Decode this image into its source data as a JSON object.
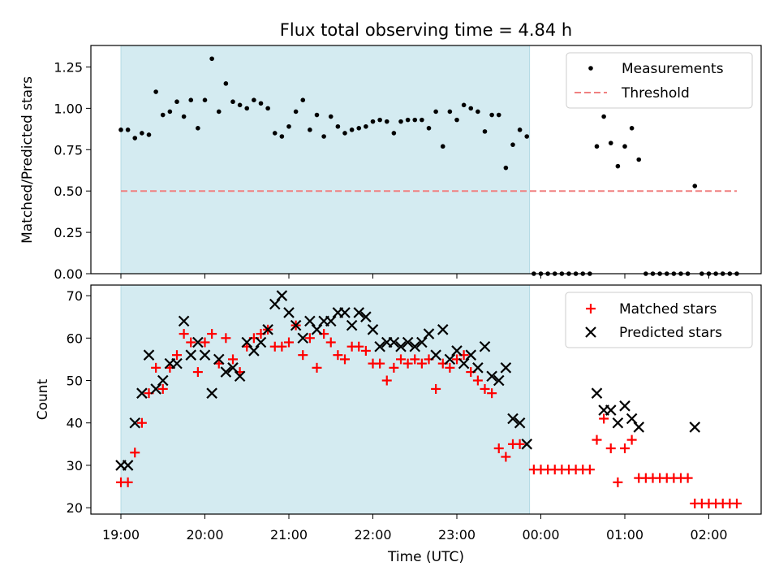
{
  "figure": {
    "title": "Flux total observing time = 4.84 h",
    "xlabel": "Time (UTC)",
    "x_ticks": [
      "19:00",
      "20:00",
      "21:00",
      "22:00",
      "23:00",
      "00:00",
      "01:00",
      "02:00"
    ]
  },
  "chart_data": [
    {
      "type": "scatter",
      "ylabel": "Matched/Predicted stars",
      "ylim": [
        0,
        1.38
      ],
      "y_ticks": [
        "0.00",
        "0.25",
        "0.50",
        "0.75",
        "1.00",
        "1.25"
      ],
      "shaded_span": [
        "19:00",
        "23:52"
      ],
      "shade_color": "#d4ebf1",
      "threshold": 0.5,
      "legend": {
        "placement": "top-right",
        "entries": [
          "Measurements",
          "Threshold"
        ]
      },
      "series": [
        {
          "name": "Measurements",
          "color": "#000000",
          "marker": "dot",
          "points": [
            [
              "19:00",
              0.87
            ],
            [
              "19:05",
              0.87
            ],
            [
              "19:10",
              0.82
            ],
            [
              "19:15",
              0.85
            ],
            [
              "19:20",
              0.84
            ],
            [
              "19:25",
              1.1
            ],
            [
              "19:30",
              0.96
            ],
            [
              "19:35",
              0.98
            ],
            [
              "19:40",
              1.04
            ],
            [
              "19:45",
              0.95
            ],
            [
              "19:50",
              1.05
            ],
            [
              "19:55",
              0.88
            ],
            [
              "20:00",
              1.05
            ],
            [
              "20:05",
              1.3
            ],
            [
              "20:10",
              0.98
            ],
            [
              "20:15",
              1.15
            ],
            [
              "20:20",
              1.04
            ],
            [
              "20:25",
              1.02
            ],
            [
              "20:30",
              1.0
            ],
            [
              "20:35",
              1.05
            ],
            [
              "20:40",
              1.03
            ],
            [
              "20:45",
              1.0
            ],
            [
              "20:50",
              0.85
            ],
            [
              "20:55",
              0.83
            ],
            [
              "21:00",
              0.89
            ],
            [
              "21:05",
              0.98
            ],
            [
              "21:10",
              1.05
            ],
            [
              "21:15",
              0.87
            ],
            [
              "21:20",
              0.96
            ],
            [
              "21:25",
              0.83
            ],
            [
              "21:30",
              0.95
            ],
            [
              "21:35",
              0.89
            ],
            [
              "21:40",
              0.85
            ],
            [
              "21:45",
              0.87
            ],
            [
              "21:50",
              0.88
            ],
            [
              "21:55",
              0.89
            ],
            [
              "22:00",
              0.92
            ],
            [
              "22:05",
              0.93
            ],
            [
              "22:10",
              0.92
            ],
            [
              "22:15",
              0.85
            ],
            [
              "22:20",
              0.92
            ],
            [
              "22:25",
              0.93
            ],
            [
              "22:30",
              0.93
            ],
            [
              "22:35",
              0.93
            ],
            [
              "22:40",
              0.88
            ],
            [
              "22:45",
              0.98
            ],
            [
              "22:50",
              0.77
            ],
            [
              "22:55",
              0.98
            ],
            [
              "23:00",
              0.93
            ],
            [
              "23:05",
              1.02
            ],
            [
              "23:10",
              1.0
            ],
            [
              "23:15",
              0.98
            ],
            [
              "23:20",
              0.86
            ],
            [
              "23:25",
              0.96
            ],
            [
              "23:30",
              0.96
            ],
            [
              "23:35",
              0.64
            ],
            [
              "23:40",
              0.78
            ],
            [
              "23:45",
              0.87
            ],
            [
              "23:50",
              0.83
            ],
            [
              "23:55",
              0.0
            ],
            [
              "00:00",
              0.0
            ],
            [
              "00:05",
              0.0
            ],
            [
              "00:10",
              0.0
            ],
            [
              "00:15",
              0.0
            ],
            [
              "00:20",
              0.0
            ],
            [
              "00:25",
              0.0
            ],
            [
              "00:30",
              0.0
            ],
            [
              "00:35",
              0.0
            ],
            [
              "00:40",
              0.77
            ],
            [
              "00:45",
              0.95
            ],
            [
              "00:50",
              0.79
            ],
            [
              "00:55",
              0.65
            ],
            [
              "01:00",
              0.77
            ],
            [
              "01:05",
              0.88
            ],
            [
              "01:10",
              0.69
            ],
            [
              "01:15",
              0.0
            ],
            [
              "01:20",
              0.0
            ],
            [
              "01:25",
              0.0
            ],
            [
              "01:30",
              0.0
            ],
            [
              "01:35",
              0.0
            ],
            [
              "01:40",
              0.0
            ],
            [
              "01:45",
              0.0
            ],
            [
              "01:50",
              0.53
            ],
            [
              "01:55",
              0.0
            ],
            [
              "02:00",
              0.0
            ],
            [
              "02:05",
              0.0
            ],
            [
              "02:10",
              0.0
            ],
            [
              "02:15",
              0.0
            ],
            [
              "02:20",
              0.0
            ]
          ]
        },
        {
          "name": "Threshold",
          "color": "#f08080",
          "style": "dashed",
          "points": [
            [
              "19:00",
              0.5
            ],
            [
              "02:20",
              0.5
            ]
          ]
        }
      ]
    },
    {
      "type": "scatter",
      "ylabel": "Count",
      "ylim": [
        18.5,
        72.5
      ],
      "y_ticks": [
        "20",
        "30",
        "40",
        "50",
        "60",
        "70"
      ],
      "shaded_span": [
        "19:00",
        "23:52"
      ],
      "shade_color": "#d4ebf1",
      "legend": {
        "placement": "top-right",
        "entries": [
          "Matched stars",
          "Predicted stars"
        ]
      },
      "series": [
        {
          "name": "Matched stars",
          "color": "#ff0000",
          "marker": "plus",
          "points": [
            [
              "19:00",
              26
            ],
            [
              "19:05",
              26
            ],
            [
              "19:10",
              33
            ],
            [
              "19:15",
              40
            ],
            [
              "19:20",
              47
            ],
            [
              "19:25",
              53
            ],
            [
              "19:30",
              48
            ],
            [
              "19:35",
              53
            ],
            [
              "19:40",
              56
            ],
            [
              "19:45",
              61
            ],
            [
              "19:50",
              59
            ],
            [
              "19:55",
              52
            ],
            [
              "20:00",
              59
            ],
            [
              "20:05",
              61
            ],
            [
              "20:10",
              54
            ],
            [
              "20:15",
              60
            ],
            [
              "20:20",
              55
            ],
            [
              "20:25",
              52
            ],
            [
              "20:30",
              58
            ],
            [
              "20:35",
              60
            ],
            [
              "20:40",
              61
            ],
            [
              "20:45",
              62
            ],
            [
              "20:50",
              58
            ],
            [
              "20:55",
              58
            ],
            [
              "21:00",
              59
            ],
            [
              "21:05",
              63
            ],
            [
              "21:10",
              56
            ],
            [
              "21:15",
              60
            ],
            [
              "21:20",
              53
            ],
            [
              "21:25",
              61
            ],
            [
              "21:30",
              59
            ],
            [
              "21:35",
              56
            ],
            [
              "21:40",
              55
            ],
            [
              "21:45",
              58
            ],
            [
              "21:50",
              58
            ],
            [
              "21:55",
              57
            ],
            [
              "22:00",
              54
            ],
            [
              "22:05",
              54
            ],
            [
              "22:10",
              50
            ],
            [
              "22:15",
              53
            ],
            [
              "22:20",
              55
            ],
            [
              "22:25",
              54
            ],
            [
              "22:30",
              55
            ],
            [
              "22:35",
              54
            ],
            [
              "22:40",
              55
            ],
            [
              "22:45",
              48
            ],
            [
              "22:50",
              54
            ],
            [
              "22:55",
              53
            ],
            [
              "23:00",
              55
            ],
            [
              "23:05",
              56
            ],
            [
              "23:10",
              52
            ],
            [
              "23:15",
              50
            ],
            [
              "23:20",
              48
            ],
            [
              "23:25",
              47
            ],
            [
              "23:30",
              34
            ],
            [
              "23:35",
              32
            ],
            [
              "23:40",
              35
            ],
            [
              "23:45",
              35
            ],
            [
              "23:55",
              29
            ],
            [
              "00:00",
              29
            ],
            [
              "00:05",
              29
            ],
            [
              "00:10",
              29
            ],
            [
              "00:15",
              29
            ],
            [
              "00:20",
              29
            ],
            [
              "00:25",
              29
            ],
            [
              "00:30",
              29
            ],
            [
              "00:35",
              29
            ],
            [
              "00:40",
              36
            ],
            [
              "00:45",
              41
            ],
            [
              "00:50",
              34
            ],
            [
              "00:55",
              26
            ],
            [
              "01:00",
              34
            ],
            [
              "01:05",
              36
            ],
            [
              "01:10",
              27
            ],
            [
              "01:15",
              27
            ],
            [
              "01:20",
              27
            ],
            [
              "01:25",
              27
            ],
            [
              "01:30",
              27
            ],
            [
              "01:35",
              27
            ],
            [
              "01:40",
              27
            ],
            [
              "01:45",
              27
            ],
            [
              "01:50",
              21
            ],
            [
              "01:55",
              21
            ],
            [
              "02:00",
              21
            ],
            [
              "02:05",
              21
            ],
            [
              "02:10",
              21
            ],
            [
              "02:15",
              21
            ],
            [
              "02:20",
              21
            ]
          ]
        },
        {
          "name": "Predicted stars",
          "color": "#000000",
          "marker": "x",
          "points": [
            [
              "19:00",
              30
            ],
            [
              "19:05",
              30
            ],
            [
              "19:10",
              40
            ],
            [
              "19:15",
              47
            ],
            [
              "19:20",
              56
            ],
            [
              "19:25",
              48
            ],
            [
              "19:30",
              50
            ],
            [
              "19:35",
              54
            ],
            [
              "19:40",
              54
            ],
            [
              "19:45",
              64
            ],
            [
              "19:50",
              56
            ],
            [
              "19:55",
              59
            ],
            [
              "20:00",
              56
            ],
            [
              "20:05",
              47
            ],
            [
              "20:10",
              55
            ],
            [
              "20:15",
              52
            ],
            [
              "20:20",
              53
            ],
            [
              "20:25",
              51
            ],
            [
              "20:30",
              59
            ],
            [
              "20:35",
              57
            ],
            [
              "20:40",
              59
            ],
            [
              "20:45",
              62
            ],
            [
              "20:50",
              68
            ],
            [
              "20:55",
              70
            ],
            [
              "21:00",
              66
            ],
            [
              "21:05",
              63
            ],
            [
              "21:10",
              60
            ],
            [
              "21:15",
              64
            ],
            [
              "21:20",
              62
            ],
            [
              "21:25",
              64
            ],
            [
              "21:30",
              64
            ],
            [
              "21:35",
              66
            ],
            [
              "21:40",
              66
            ],
            [
              "21:45",
              63
            ],
            [
              "21:50",
              66
            ],
            [
              "21:55",
              65
            ],
            [
              "22:00",
              62
            ],
            [
              "22:05",
              58
            ],
            [
              "22:10",
              59
            ],
            [
              "22:15",
              59
            ],
            [
              "22:20",
              58
            ],
            [
              "22:25",
              59
            ],
            [
              "22:30",
              58
            ],
            [
              "22:35",
              59
            ],
            [
              "22:40",
              61
            ],
            [
              "22:45",
              56
            ],
            [
              "22:50",
              62
            ],
            [
              "22:55",
              55
            ],
            [
              "23:00",
              57
            ],
            [
              "23:05",
              54
            ],
            [
              "23:10",
              56
            ],
            [
              "23:15",
              53
            ],
            [
              "23:20",
              58
            ],
            [
              "23:25",
              51
            ],
            [
              "23:30",
              50
            ],
            [
              "23:35",
              53
            ],
            [
              "23:40",
              41
            ],
            [
              "23:45",
              40
            ],
            [
              "23:50",
              35
            ],
            [
              "00:40",
              47
            ],
            [
              "00:45",
              43
            ],
            [
              "00:50",
              43
            ],
            [
              "00:55",
              40
            ],
            [
              "01:00",
              44
            ],
            [
              "01:05",
              41
            ],
            [
              "01:10",
              39
            ],
            [
              "01:50",
              39
            ]
          ]
        }
      ]
    }
  ]
}
